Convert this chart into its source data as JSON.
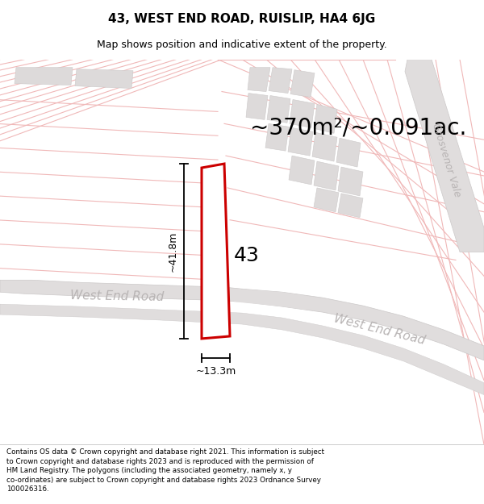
{
  "title_line1": "43, WEST END ROAD, RUISLIP, HA4 6JG",
  "title_line2": "Map shows position and indicative extent of the property.",
  "area_text": "~370m²/~0.091ac.",
  "label_43": "43",
  "dim_vertical": "~41.8m",
  "dim_horizontal": "~13.3m",
  "road_label_left": "West End Road",
  "road_label_right": "West End Road",
  "road_label_grosvenor": "Grosvenor Vale",
  "footer_text": "Contains OS data © Crown copyright and database right 2021. This information is subject to Crown copyright and database rights 2023 and is reproduced with the permission of HM Land Registry. The polygons (including the associated geometry, namely x, y co-ordinates) are subject to Crown copyright and database rights 2023 Ordnance Survey 100026316.",
  "header_bg": "#ffffff",
  "footer_bg": "#ffffff",
  "map_bg": "#f5f3f3",
  "road_fill": "#e0dddd",
  "block_fill": "#dddada",
  "plot_fill": "#ffffff",
  "plot_stroke": "#cc0000",
  "grid_color": "#f0b8b8",
  "road_text_color": "#b8b4b4",
  "dim_color": "#000000",
  "header_title_size": 11,
  "header_sub_size": 9,
  "area_text_size": 20,
  "label_43_size": 18,
  "dim_text_size": 9,
  "road_text_size": 11,
  "grosvenor_text_size": 9,
  "footer_text_size": 6.3
}
